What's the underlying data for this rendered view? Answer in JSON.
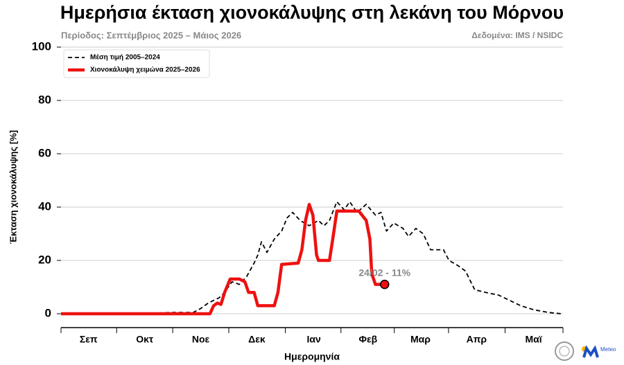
{
  "chart_data": {
    "type": "line",
    "title": "Ημερήσια έκταση χιονοκάλυψης στη λεκάνη του Μόρνου",
    "subtitle": "Περίοδος: Σεπτέμβριος 2025 – Μάιος 2026",
    "source": "Δεδομένα: IMS / NSIDC",
    "x_label": "Ημερομηνία",
    "y_label": "Έκταση χιονοκάλυψης [%]",
    "xlim": [
      0,
      273
    ],
    "xticks": [
      {
        "value": 15,
        "label": "Σεπ"
      },
      {
        "value": 45.5,
        "label": "Οκτ"
      },
      {
        "value": 76,
        "label": "Νοε"
      },
      {
        "value": 106.5,
        "label": "Δεκ"
      },
      {
        "value": 137.5,
        "label": "Ιαν"
      },
      {
        "value": 167,
        "label": "Φεβ"
      },
      {
        "value": 195.5,
        "label": "Μαρ"
      },
      {
        "value": 226,
        "label": "Απρ"
      },
      {
        "value": 257,
        "label": "Μαϊ"
      }
    ],
    "ylim": [
      0,
      100
    ],
    "yticks": [
      0,
      20,
      40,
      60,
      80,
      100
    ],
    "grid": true,
    "legend": "upper-left",
    "series": [
      {
        "name": "Μέση τιμή 2005–2024",
        "color": "#000000",
        "dash": true,
        "x": [
          0,
          42,
          60,
          72,
          76,
          80,
          86,
          89,
          93,
          97,
          101,
          105,
          107,
          109,
          112,
          116,
          120,
          123,
          126,
          130,
          135,
          140,
          143,
          146,
          150,
          154,
          157,
          161,
          166,
          171,
          174,
          177,
          181,
          186,
          189,
          193,
          197,
          201,
          208,
          211,
          216,
          220,
          225,
          231,
          238,
          244,
          250,
          257,
          265,
          272
        ],
        "values": [
          0,
          0,
          0.5,
          0.5,
          2,
          4,
          6,
          8,
          12,
          11,
          14,
          19,
          22,
          27,
          23,
          28,
          31,
          36,
          38,
          35,
          33,
          35,
          33,
          35,
          42,
          39,
          42,
          38,
          41,
          37,
          38,
          31,
          34,
          32,
          29,
          32,
          30,
          24,
          24,
          20,
          18,
          16,
          9,
          8,
          7,
          5,
          3,
          1.5,
          0.5,
          0
        ]
      },
      {
        "name": "Χιονοκάλυψη χειμώνα 2025–2026",
        "color": "#ee1111",
        "dash": false,
        "x": [
          0,
          81,
          83,
          85,
          87,
          89,
          92,
          97,
          100,
          102,
          105,
          107,
          116,
          118,
          120,
          129,
          131,
          133,
          135,
          137,
          139,
          140,
          146,
          148,
          150,
          162,
          166,
          168,
          169,
          171,
          173,
          176
        ],
        "values": [
          0,
          0,
          3,
          4,
          3.5,
          8,
          13,
          13,
          12,
          8,
          8,
          3,
          3,
          8,
          18.5,
          19,
          24,
          35,
          41,
          37,
          22,
          20,
          20,
          29,
          38.5,
          38.5,
          35,
          28,
          15,
          11,
          11,
          11
        ]
      }
    ],
    "annotation": "24/02 - 11%",
    "logo_text": "Meteo"
  }
}
